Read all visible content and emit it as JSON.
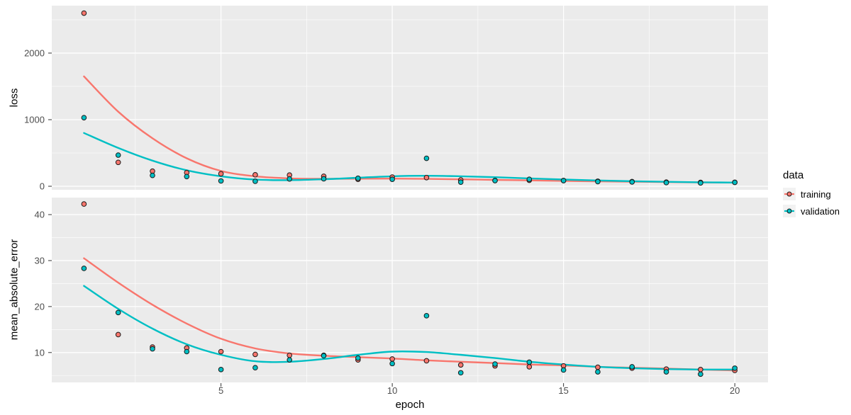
{
  "figure": {
    "background": "#ffffff",
    "panel_background": "#ebebeb",
    "grid_color": "#ffffff",
    "tick_mark_color": "#333333",
    "tick_label_color": "#4d4d4d",
    "point_outline_color": "#1a1a1a"
  },
  "legend": {
    "title": "data",
    "key_background": "#f2f2f2",
    "position": "right",
    "items": [
      {
        "label": "training",
        "color": "#F8766D"
      },
      {
        "label": "validation",
        "color": "#00BFC4"
      }
    ]
  },
  "chart_data": [
    {
      "type": "scatter",
      "facet": "loss",
      "xlabel": "epoch",
      "ylabel": "loss",
      "x": [
        1,
        2,
        3,
        4,
        5,
        6,
        7,
        8,
        9,
        10,
        11,
        12,
        13,
        14,
        15,
        16,
        17,
        18,
        19,
        20
      ],
      "series": [
        {
          "name": "training",
          "color": "#F8766D",
          "points": [
            2600,
            359,
            227,
            205,
            188,
            172,
            168,
            150,
            105,
            138,
            130,
            95,
            88,
            90,
            86,
            76,
            70,
            62,
            58,
            60
          ],
          "smooth": [
            1650,
            1120,
            720,
            420,
            230,
            150,
            118,
            112,
            114,
            115,
            111,
            104,
            96,
            88,
            81,
            74,
            68,
            63,
            58,
            55
          ]
        },
        {
          "name": "validation",
          "color": "#00BFC4",
          "points": [
            1030,
            468,
            163,
            146,
            80,
            75,
            110,
            112,
            120,
            105,
            420,
            62,
            85,
            105,
            85,
            70,
            65,
            55,
            50,
            58
          ],
          "smooth": [
            800,
            575,
            385,
            240,
            150,
            100,
            92,
            105,
            128,
            150,
            158,
            150,
            136,
            118,
            101,
            87,
            76,
            67,
            60,
            56
          ]
        }
      ],
      "xlim": [
        0.06,
        20.97
      ],
      "ylim": [
        -53,
        2712
      ],
      "xticks": [
        5,
        10,
        15,
        20
      ],
      "xminor": [
        2.5,
        7.5,
        12.5,
        17.5
      ],
      "yticks": [
        0,
        1000,
        2000
      ],
      "yminor": [
        500,
        1500,
        2500
      ],
      "grid": true,
      "legend_position": "right"
    },
    {
      "type": "scatter",
      "facet": "mean_absolute_error",
      "xlabel": "epoch",
      "ylabel": "mean_absolute_error",
      "x": [
        1,
        2,
        3,
        4,
        5,
        6,
        7,
        8,
        9,
        10,
        11,
        12,
        13,
        14,
        15,
        16,
        17,
        18,
        19,
        20
      ],
      "series": [
        {
          "name": "training",
          "color": "#F8766D",
          "points": [
            42.3,
            13.9,
            11.2,
            11.0,
            10.2,
            9.6,
            9.4,
            9.4,
            8.4,
            8.6,
            8.2,
            7.3,
            7.1,
            6.9,
            7.1,
            6.8,
            6.6,
            6.4,
            6.3,
            6.1
          ],
          "smooth": [
            30.5,
            25.2,
            20.4,
            16.3,
            13.0,
            10.9,
            9.8,
            9.3,
            9.0,
            8.7,
            8.3,
            8.0,
            7.7,
            7.4,
            7.2,
            6.9,
            6.7,
            6.5,
            6.3,
            6.1
          ]
        },
        {
          "name": "validation",
          "color": "#00BFC4",
          "points": [
            28.3,
            18.7,
            10.8,
            10.2,
            6.3,
            6.7,
            8.4,
            9.3,
            8.8,
            7.6,
            18.0,
            5.6,
            7.5,
            7.9,
            6.2,
            5.8,
            6.9,
            5.8,
            5.3,
            6.6
          ],
          "smooth": [
            24.5,
            19.5,
            15.2,
            11.8,
            9.5,
            8.1,
            8.0,
            8.6,
            9.5,
            10.2,
            10.1,
            9.5,
            8.8,
            8.0,
            7.4,
            6.9,
            6.6,
            6.4,
            6.3,
            6.3
          ]
        }
      ],
      "xlim": [
        0.06,
        20.97
      ],
      "ylim": [
        3.5,
        43.7
      ],
      "xticks": [
        5,
        10,
        15,
        20
      ],
      "xminor": [
        2.5,
        7.5,
        12.5,
        17.5
      ],
      "yticks": [
        10,
        20,
        30,
        40
      ],
      "yminor": [
        5,
        15,
        25,
        35
      ],
      "grid": true,
      "legend_position": "right"
    }
  ]
}
